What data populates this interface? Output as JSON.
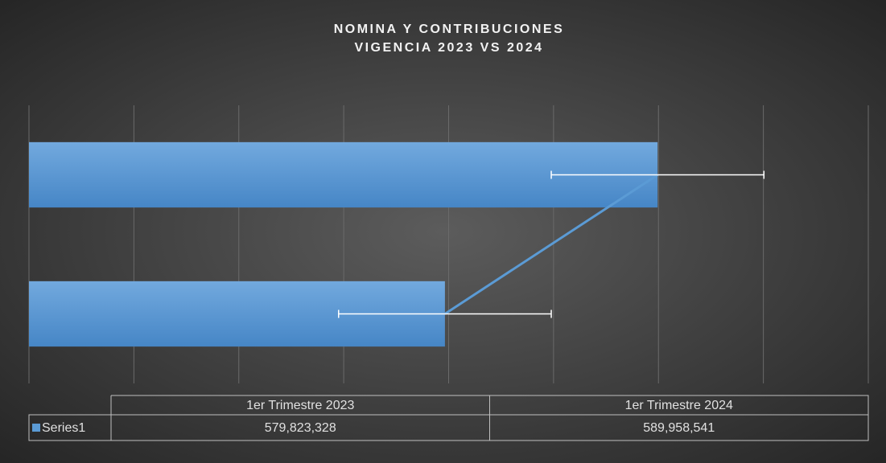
{
  "chart_data": {
    "type": "bar",
    "orientation": "horizontal",
    "title": [
      "NOMINA Y CONTRIBUCIONES",
      "VIGENCIA 2023 VS 2024"
    ],
    "categories": [
      "1er Trimestre 2023",
      "1er Trimestre 2024"
    ],
    "series": [
      {
        "name": "Series1",
        "color": "#5b9bd5",
        "values": [
          579823328,
          589958541
        ],
        "value_labels": [
          "579,823,328",
          "589,958,541"
        ],
        "errors": [
          5067607,
          5067607
        ]
      }
    ],
    "xlim": [
      560000000,
      600000000
    ],
    "xticks": [
      560000000,
      565000000,
      570000000,
      575000000,
      580000000,
      585000000,
      590000000,
      595000000,
      600000000
    ],
    "grid": true,
    "data_table": true
  }
}
